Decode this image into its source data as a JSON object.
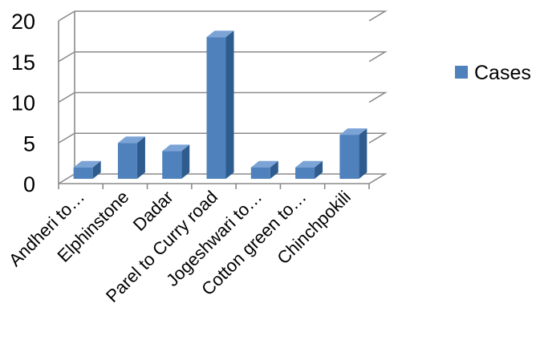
{
  "chart_data": {
    "type": "bar",
    "three_d": true,
    "categories": [
      "Andheri to…",
      "Elphinstone",
      "Dadar",
      "Parel to Curry road",
      "Jogeshwari to…",
      "Cotton green to…",
      "Chinchpokili"
    ],
    "series": [
      {
        "name": "Cases",
        "values": [
          2,
          5,
          4,
          18,
          2,
          2,
          6
        ]
      }
    ],
    "ylim": [
      0,
      20
    ],
    "yticks": [
      "0",
      "5",
      "10",
      "15",
      "20"
    ],
    "grid": true,
    "legend": {
      "placement": "right"
    },
    "colors": {
      "bar_front": "#4f81bd",
      "bar_side": "#2e5c8f",
      "bar_top": "#7ba3d6",
      "gridline": "#8a8a8a"
    }
  }
}
